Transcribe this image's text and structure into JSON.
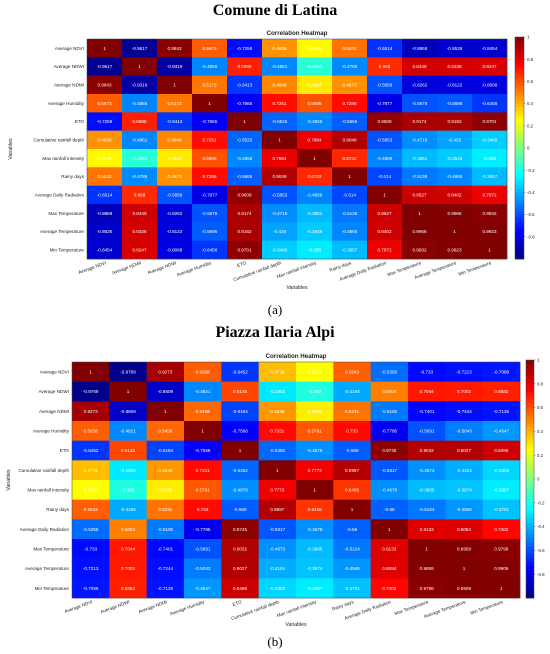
{
  "figure": {
    "panel_a_title": "Comune di Latina",
    "panel_a_label": "(a)",
    "panel_b_title": "Piazza Ilaria Alpi",
    "panel_b_label": "(b)"
  },
  "chart_data": [
    {
      "type": "heatmap",
      "title": "Correlation Heatmap",
      "xlabel": "Variables",
      "ylabel": "Variables",
      "colormap": "jet",
      "clim": [
        -1,
        1
      ],
      "colorbar_ticks": [
        "1",
        "0.8",
        "0.6",
        "0.4",
        "0.2",
        "0",
        "-0.2",
        "-0.4",
        "-0.6",
        "-0.8"
      ],
      "labels": [
        "Average NDVI",
        "Average NDWI",
        "Average NDMI",
        "Average Humidity",
        "ETO",
        "Cumulative rainfall depth",
        "Max rainfall intensity",
        "Rainy days",
        "Average Daily Radiation",
        "Max Temperature",
        "Average Temperature",
        "Min Temperature"
      ],
      "matrix": [
        [
          1,
          -0.9617,
          0.9843,
          0.5673,
          -0.7258,
          0.4636,
          0.2636,
          0.5242,
          -0.6514,
          -0.8868,
          -0.8535,
          -0.8454
        ],
        [
          -0.9617,
          1,
          -0.9319,
          -0.4856,
          0.6888,
          -0.4861,
          -0.1691,
          -0.4785,
          0.668,
          0.8449,
          0.8338,
          0.8247
        ],
        [
          0.9843,
          -0.9319,
          1,
          0.5173,
          -0.6413,
          0.4849,
          0.2904,
          0.4673,
          -0.5858,
          -0.8262,
          -0.8122,
          -0.8098
        ],
        [
          0.5673,
          -0.4856,
          0.5173,
          1,
          -0.7665,
          0.7251,
          0.5886,
          0.7286,
          -0.7977,
          -0.5878,
          -0.5696,
          -0.6456
        ],
        [
          -0.7258,
          0.6888,
          -0.6413,
          -0.7665,
          1,
          -0.5525,
          -0.4856,
          -0.5666,
          0.9609,
          0.9174,
          0.9162,
          0.9701
        ],
        [
          0.4636,
          -0.4861,
          0.4849,
          0.7251,
          -0.5525,
          1,
          0.7884,
          0.9049,
          -0.5853,
          -0.4716,
          -0.428,
          -0.3469
        ],
        [
          0.2636,
          -0.1691,
          0.2904,
          0.5886,
          -0.4856,
          0.7884,
          1,
          0.6742,
          -0.4899,
          -0.3861,
          -0.3546,
          -0.285
        ],
        [
          0.5242,
          -0.4785,
          0.4673,
          0.7286,
          -0.5666,
          0.9049,
          0.6742,
          1,
          -0.614,
          -0.5138,
          -0.4865,
          -0.3857
        ],
        [
          -0.6514,
          0.668,
          -0.5858,
          -0.7977,
          0.9609,
          -0.5853,
          -0.4899,
          -0.614,
          1,
          0.8527,
          0.8402,
          0.7872
        ],
        [
          -0.8868,
          0.8449,
          -0.8262,
          -0.5878,
          0.9174,
          -0.4716,
          -0.3861,
          -0.5138,
          0.8527,
          1,
          0.9966,
          0.9832
        ],
        [
          -0.8535,
          0.8338,
          -0.8122,
          -0.5696,
          0.9162,
          -0.428,
          -0.3546,
          -0.4865,
          0.8402,
          0.9966,
          1,
          0.9923
        ],
        [
          -0.8454,
          0.8247,
          -0.8098,
          -0.6456,
          0.9701,
          -0.3469,
          -0.285,
          -0.3857,
          0.7872,
          0.9832,
          0.9923,
          1
        ]
      ]
    },
    {
      "type": "heatmap",
      "title": "Correlation Heatmap",
      "xlabel": "Variables",
      "ylabel": "Variables",
      "colormap": "jet",
      "clim": [
        -1,
        1
      ],
      "colorbar_ticks": [
        "1",
        "0.8",
        "0.6",
        "0.4",
        "0.2",
        "0",
        "-0.2",
        "-0.4",
        "-0.6",
        "-0.8"
      ],
      "labels": [
        "Average NDVI",
        "Average NDWI",
        "Average NDMI",
        "Average Humidity",
        "ETO",
        "Cumulative rainfall depth",
        "Max rainfall intensity",
        "Rainy days",
        "Average Daily Radiation",
        "Max Temperature",
        "Average Temperature",
        "Min Temperature"
      ],
      "matrix": [
        [
          1,
          -0.9769,
          0.9273,
          0.5658,
          -0.6452,
          0.3776,
          0.2523,
          0.5643,
          -0.5356,
          -0.733,
          -0.7213,
          -0.7089
        ],
        [
          -0.9769,
          1,
          -0.8609,
          -0.4821,
          0.6145,
          -0.2902,
          -0.192,
          -0.4166,
          0.5004,
          0.7044,
          0.7002,
          0.6882
        ],
        [
          0.9273,
          -0.8609,
          1,
          0.5456,
          -0.6184,
          0.4539,
          0.2835,
          0.5231,
          -0.5105,
          -0.7401,
          -0.7244,
          -0.7126
        ],
        [
          0.5658,
          -0.4821,
          0.5456,
          1,
          -0.7568,
          0.7331,
          0.5791,
          0.733,
          -0.7795,
          -0.5891,
          -0.5043,
          -0.4547
        ],
        [
          -0.6452,
          0.6145,
          -0.6184,
          -0.7568,
          1,
          -0.5482,
          -0.4678,
          -0.569,
          0.9745,
          0.9032,
          0.9027,
          0.8496
        ],
        [
          0.3776,
          -0.2902,
          0.4539,
          0.7331,
          -0.5482,
          1,
          0.7773,
          0.8997,
          -0.5817,
          -0.4673,
          -0.4104,
          -0.3303
        ],
        [
          0.2523,
          -0.192,
          0.2835,
          0.5791,
          -0.4678,
          0.7773,
          1,
          0.6456,
          -0.4678,
          -0.3805,
          -0.3674,
          -0.2867
        ],
        [
          0.5643,
          -0.4166,
          0.5231,
          0.733,
          -0.569,
          0.8997,
          0.6456,
          1,
          -0.56,
          -0.5124,
          -0.4565,
          -0.3701
        ],
        [
          -0.5356,
          0.5004,
          -0.5105,
          -0.7795,
          0.9745,
          -0.5817,
          -0.4678,
          -0.56,
          1,
          0.8133,
          0.8084,
          0.7402
        ],
        [
          -0.733,
          0.7044,
          -0.7401,
          -0.5891,
          0.9032,
          -0.4673,
          -0.3805,
          -0.5124,
          0.8133,
          1,
          0.9959,
          0.9798
        ],
        [
          -0.7213,
          0.7002,
          -0.7244,
          -0.5043,
          0.9027,
          -0.4104,
          -0.3674,
          -0.4565,
          0.8084,
          0.9959,
          1,
          0.9909
        ],
        [
          -0.7089,
          0.6882,
          -0.7126,
          -0.4547,
          0.8496,
          -0.3303,
          -0.2867,
          -0.3701,
          0.7402,
          0.9798,
          0.9909,
          1
        ]
      ]
    }
  ]
}
